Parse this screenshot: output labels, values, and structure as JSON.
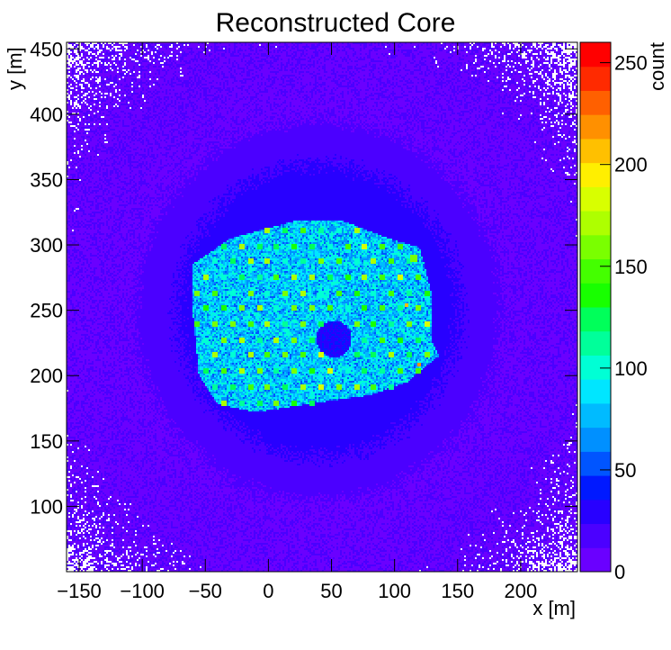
{
  "chart_data": {
    "type": "heatmap",
    "title": "Reconstructed Core",
    "xlabel": "x [m]",
    "ylabel": "y [m]",
    "zlabel": "count",
    "xlim": [
      -160,
      245
    ],
    "ylim": [
      50,
      455
    ],
    "zlim": [
      0,
      260
    ],
    "x_ticks": [
      -150,
      -100,
      -50,
      0,
      50,
      100,
      150,
      200
    ],
    "y_ticks": [
      100,
      150,
      200,
      250,
      300,
      350,
      400,
      450
    ],
    "z_ticks": [
      0,
      50,
      100,
      150,
      200,
      250
    ],
    "colorbar_colors": [
      "#6a00ff",
      "#4b00ff",
      "#2800ff",
      "#0019ff",
      "#0055ff",
      "#0090ff",
      "#00bbff",
      "#00e6ff",
      "#00ffd5",
      "#00ff9a",
      "#00ff5a",
      "#18ff00",
      "#44ff00",
      "#7aff00",
      "#aeff00",
      "#d8ff00",
      "#ffef00",
      "#ffc000",
      "#ff9000",
      "#ff6000",
      "#ff2a00",
      "#ff0000"
    ],
    "features": {
      "background_count": "~5-15",
      "core_region": {
        "x_range": [
          -60,
          130
        ],
        "y_range": [
          175,
          320
        ],
        "count": "~60-110"
      },
      "detector_grid_peaks": {
        "count": "~100-180",
        "layout": "hexagonal array inside core region"
      },
      "hot_spot": {
        "x": 115,
        "y": 290,
        "count": "~160"
      },
      "deficit_hole": {
        "x": 52,
        "y": 228,
        "count": "~40"
      },
      "hot_points": [
        {
          "x": 110,
          "y": 254,
          "count": "~210"
        },
        {
          "x": 120,
          "y": 209,
          "count": "~220"
        }
      ],
      "sparse_edges": "white (empty) speckle toward the four corners"
    }
  }
}
